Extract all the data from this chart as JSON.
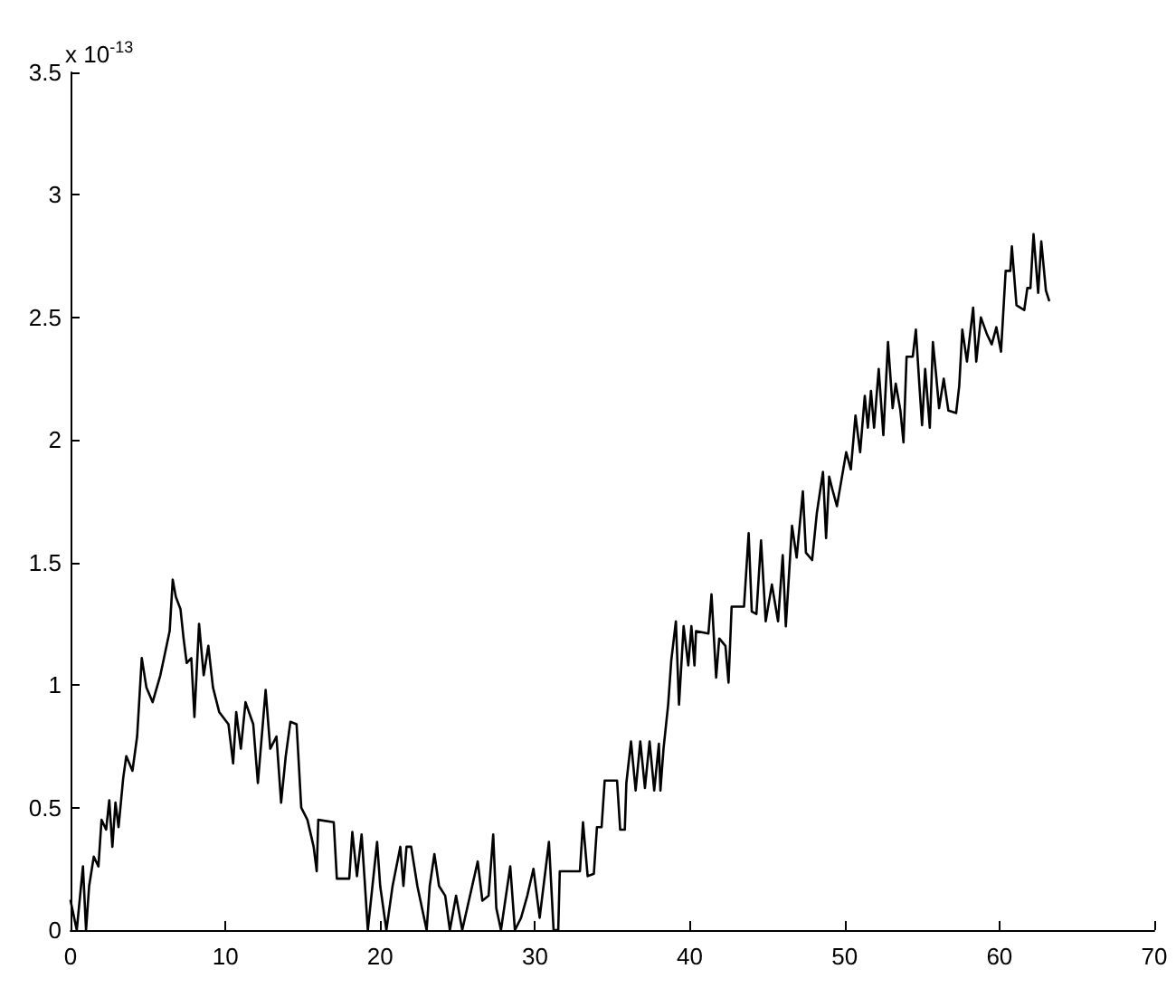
{
  "chart_data": {
    "type": "line",
    "ylabel": "x 10$^{-13}$",
    "x": [
      0.0,
      0.4,
      0.8,
      1.0,
      1.2,
      1.5,
      1.8,
      2.0,
      2.3,
      2.5,
      2.7,
      2.9,
      3.1,
      3.4,
      3.6,
      4.0,
      4.3,
      4.6,
      4.9,
      5.3,
      5.8,
      6.1,
      6.4,
      6.6,
      6.8,
      7.1,
      7.3,
      7.5,
      7.8,
      8.0,
      8.3,
      8.6,
      8.9,
      9.2,
      9.6,
      10.2,
      10.5,
      10.7,
      11.0,
      11.3,
      11.8,
      12.1,
      12.6,
      12.9,
      13.3,
      13.6,
      13.9,
      14.2,
      14.6,
      14.9,
      15.3,
      15.7,
      15.9,
      16.0,
      17.0,
      17.2,
      18.0,
      18.2,
      18.5,
      18.8,
      19.0,
      19.2,
      19.8,
      20.0,
      20.4,
      20.8,
      21.3,
      21.5,
      21.7,
      22.0,
      22.4,
      23.0,
      23.2,
      23.5,
      23.8,
      24.2,
      24.5,
      24.9,
      25.3,
      25.8,
      26.3,
      26.6,
      27.0,
      27.3,
      27.5,
      27.8,
      28.4,
      28.7,
      29.1,
      29.5,
      29.9,
      30.3,
      30.9,
      31.2,
      31.5,
      31.6,
      32.9,
      33.1,
      33.4,
      33.8,
      34.0,
      34.3,
      34.5,
      35.3,
      35.5,
      35.8,
      35.9,
      36.2,
      36.5,
      36.8,
      37.1,
      37.4,
      37.7,
      38.0,
      38.1,
      38.3,
      38.6,
      38.8,
      39.1,
      39.3,
      39.6,
      39.9,
      40.1,
      40.3,
      40.4,
      41.2,
      41.4,
      41.7,
      41.9,
      42.3,
      42.5,
      42.7,
      43.5,
      43.8,
      44.0,
      44.3,
      44.6,
      44.9,
      45.3,
      45.7,
      46.0,
      46.2,
      46.6,
      46.9,
      47.3,
      47.5,
      47.9,
      48.2,
      48.6,
      48.8,
      49.0,
      49.2,
      49.5,
      49.8,
      50.1,
      50.4,
      50.7,
      51.0,
      51.3,
      51.5,
      51.7,
      51.9,
      52.2,
      52.5,
      52.8,
      53.1,
      53.3,
      53.6,
      53.8,
      54.0,
      54.4,
      54.6,
      54.8,
      55.0,
      55.2,
      55.5,
      55.7,
      55.9,
      56.1,
      56.4,
      56.7,
      57.2,
      57.4,
      57.6,
      57.9,
      58.3,
      58.5,
      58.8,
      59.2,
      59.5,
      59.8,
      60.1,
      60.4,
      60.7,
      60.8,
      61.1,
      61.6,
      61.8,
      62.0,
      62.2,
      62.5,
      62.7,
      63.0,
      63.2
    ],
    "series": [
      {
        "color": "#000000",
        "values": [
          0.12,
          0,
          0.26,
          0,
          0.18,
          0.3,
          0.26,
          0.45,
          0.41,
          0.53,
          0.34,
          0.52,
          0.42,
          0.62,
          0.71,
          0.65,
          0.79,
          1.11,
          0.99,
          0.93,
          1.04,
          1.13,
          1.22,
          1.43,
          1.36,
          1.31,
          1.19,
          1.09,
          1.11,
          0.87,
          1.25,
          1.04,
          1.16,
          0.99,
          0.89,
          0.84,
          0.68,
          0.89,
          0.74,
          0.93,
          0.84,
          0.6,
          0.98,
          0.74,
          0.79,
          0.52,
          0.71,
          0.85,
          0.84,
          0.5,
          0.45,
          0.34,
          0.24,
          0.45,
          0.44,
          0.21,
          0.21,
          0.4,
          0.22,
          0.39,
          0.2,
          0,
          0.36,
          0.18,
          0,
          0.18,
          0.34,
          0.18,
          0.34,
          0.34,
          0.18,
          0,
          0.18,
          0.31,
          0.18,
          0.14,
          0,
          0.14,
          0,
          0.14,
          0.28,
          0.12,
          0.14,
          0.39,
          0.09,
          0,
          0.26,
          0,
          0.05,
          0.14,
          0.25,
          0.05,
          0.36,
          0,
          0,
          0.24,
          0.24,
          0.44,
          0.22,
          0.23,
          0.42,
          0.42,
          0.61,
          0.61,
          0.41,
          0.41,
          0.6,
          0.77,
          0.57,
          0.77,
          0.58,
          0.77,
          0.57,
          0.76,
          0.57,
          0.74,
          0.92,
          1.1,
          1.26,
          0.92,
          1.24,
          1.08,
          1.24,
          1.08,
          1.22,
          1.21,
          1.37,
          1.03,
          1.19,
          1.16,
          1.01,
          1.32,
          1.32,
          1.62,
          1.3,
          1.29,
          1.59,
          1.26,
          1.41,
          1.26,
          1.53,
          1.24,
          1.65,
          1.52,
          1.79,
          1.54,
          1.51,
          1.7,
          1.87,
          1.6,
          1.85,
          1.8,
          1.73,
          1.84,
          1.95,
          1.88,
          2.1,
          1.95,
          2.18,
          2.05,
          2.2,
          2.05,
          2.29,
          2.02,
          2.4,
          2.13,
          2.23,
          2.12,
          1.99,
          2.34,
          2.34,
          2.45,
          2.25,
          2.06,
          2.29,
          2.05,
          2.4,
          2.27,
          2.13,
          2.25,
          2.12,
          2.11,
          2.22,
          2.45,
          2.32,
          2.54,
          2.32,
          2.5,
          2.43,
          2.39,
          2.46,
          2.36,
          2.69,
          2.69,
          2.79,
          2.55,
          2.53,
          2.62,
          2.62,
          2.84,
          2.6,
          2.81,
          2.61,
          2.57
        ]
      }
    ],
    "xlim": [
      0,
      70
    ],
    "ylim": [
      0,
      3.5
    ],
    "xticks": [
      0,
      10,
      20,
      30,
      40,
      50,
      60,
      70
    ],
    "yticks": [
      0,
      0.5,
      1,
      1.5,
      2,
      2.5,
      3,
      3.5
    ],
    "marker": "none",
    "line_style": "solid"
  }
}
